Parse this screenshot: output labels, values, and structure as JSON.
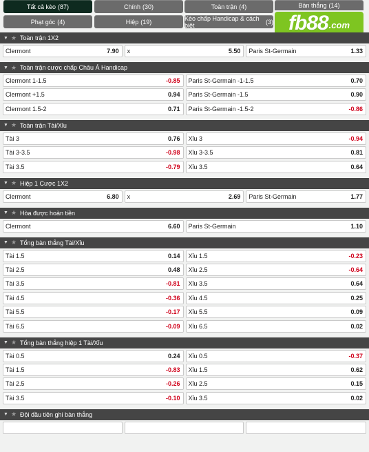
{
  "tabs": [
    {
      "label": "Tất cả kèo",
      "count": "(87)"
    },
    {
      "label": "Chính",
      "count": "(30)"
    },
    {
      "label": "Toàn trận",
      "count": "(4)"
    },
    {
      "label": "Bàn thắng",
      "count": "(14)"
    },
    {
      "label": "Phạt góc",
      "count": "(4)"
    },
    {
      "label": "Hiệp",
      "count": "(19)"
    },
    {
      "label": "Kèo chấp Handicap & cách biệt",
      "count": "(3)"
    }
  ],
  "logo": {
    "text": "fb88",
    "domain": ".com",
    "color": "#7ec521"
  },
  "colors": {
    "header_bg": "#454545",
    "active_tab": "#0e2a1f",
    "tab_bg": "#6b6b6b",
    "negative_odd": "#d0021b"
  },
  "markets": [
    {
      "title": "Toàn trận 1X2",
      "rows": [
        [
          {
            "label": "Clermont",
            "odd": "7.90"
          },
          {
            "label": "x",
            "odd": "5.50"
          },
          {
            "label": "Paris St-Germain",
            "odd": "1.33"
          }
        ]
      ]
    },
    {
      "title": "Toàn trận cược chấp Châu Á Handicap",
      "rows": [
        [
          {
            "label": "Clermont 1-1.5",
            "odd": "-0.85"
          },
          {
            "label": "Paris St-Germain -1-1.5",
            "odd": "0.70"
          }
        ],
        [
          {
            "label": "Clermont +1.5",
            "odd": "0.94"
          },
          {
            "label": "Paris St-Germain -1.5",
            "odd": "0.90"
          }
        ],
        [
          {
            "label": "Clermont 1.5-2",
            "odd": "0.71"
          },
          {
            "label": "Paris St-Germain -1.5-2",
            "odd": "-0.86"
          }
        ]
      ]
    },
    {
      "title": "Toàn trận Tài/Xỉu",
      "rows": [
        [
          {
            "label": "Tài 3",
            "odd": "0.76"
          },
          {
            "label": "Xỉu 3",
            "odd": "-0.94"
          }
        ],
        [
          {
            "label": "Tài 3-3.5",
            "odd": "-0.98"
          },
          {
            "label": "Xỉu 3-3.5",
            "odd": "0.81"
          }
        ],
        [
          {
            "label": "Tài 3.5",
            "odd": "-0.79"
          },
          {
            "label": "Xỉu 3.5",
            "odd": "0.64"
          }
        ]
      ]
    },
    {
      "title": "Hiệp 1 Cược 1X2",
      "rows": [
        [
          {
            "label": "Clermont",
            "odd": "6.80"
          },
          {
            "label": "x",
            "odd": "2.69"
          },
          {
            "label": "Paris St-Germain",
            "odd": "1.77"
          }
        ]
      ]
    },
    {
      "title": "Hòa được hoàn tiền",
      "rows": [
        [
          {
            "label": "Clermont",
            "odd": "6.60"
          },
          {
            "label": "Paris St-Germain",
            "odd": "1.10"
          }
        ]
      ]
    },
    {
      "title": "Tổng bàn thắng Tài/Xỉu",
      "rows": [
        [
          {
            "label": "Tài 1.5",
            "odd": "0.14"
          },
          {
            "label": "Xỉu 1.5",
            "odd": "-0.23"
          }
        ],
        [
          {
            "label": "Tài 2.5",
            "odd": "0.48"
          },
          {
            "label": "Xỉu 2.5",
            "odd": "-0.64"
          }
        ],
        [
          {
            "label": "Tài 3.5",
            "odd": "-0.81"
          },
          {
            "label": "Xỉu 3.5",
            "odd": "0.64"
          }
        ],
        [
          {
            "label": "Tài 4.5",
            "odd": "-0.36"
          },
          {
            "label": "Xỉu 4.5",
            "odd": "0.25"
          }
        ],
        [
          {
            "label": "Tài 5.5",
            "odd": "-0.17"
          },
          {
            "label": "Xỉu 5.5",
            "odd": "0.09"
          }
        ],
        [
          {
            "label": "Tài 6.5",
            "odd": "-0.09"
          },
          {
            "label": "Xỉu 6.5",
            "odd": "0.02"
          }
        ]
      ]
    },
    {
      "title": "Tổng bàn thắng hiệp 1 Tài/Xỉu",
      "rows": [
        [
          {
            "label": "Tài 0.5",
            "odd": "0.24"
          },
          {
            "label": "Xỉu 0.5",
            "odd": "-0.37"
          }
        ],
        [
          {
            "label": "Tài 1.5",
            "odd": "-0.83"
          },
          {
            "label": "Xỉu 1.5",
            "odd": "0.62"
          }
        ],
        [
          {
            "label": "Tài 2.5",
            "odd": "-0.26"
          },
          {
            "label": "Xỉu 2.5",
            "odd": "0.15"
          }
        ],
        [
          {
            "label": "Tài 3.5",
            "odd": "-0.10"
          },
          {
            "label": "Xỉu 3.5",
            "odd": "0.02"
          }
        ]
      ]
    },
    {
      "title": "Đội đầu tiên ghi bàn thắng",
      "rows": [
        [
          {
            "label": "",
            "odd": ""
          },
          {
            "label": "",
            "odd": ""
          },
          {
            "label": "",
            "odd": ""
          }
        ]
      ]
    }
  ]
}
